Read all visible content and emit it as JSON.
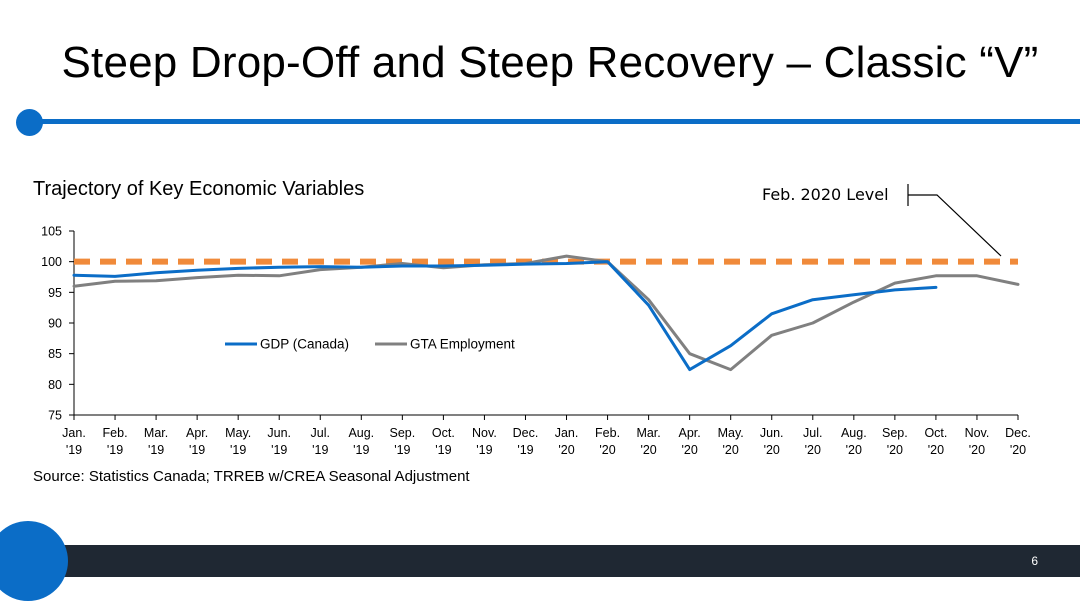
{
  "slide": {
    "title": "Steep Drop-Off and Steep Recovery – Classic “V”",
    "page_number": "6",
    "accent_color": "#0b6dc7",
    "footer_color": "#1f2833"
  },
  "chart_data": {
    "type": "line",
    "title": "Trajectory of Key Economic Variables",
    "source": "Source: Statistics Canada; TRREB w/CREA Seasonal Adjustment",
    "xlabel": "",
    "ylabel": "",
    "categories": [
      [
        "Jan.",
        "'19"
      ],
      [
        "Feb.",
        "'19"
      ],
      [
        "Mar.",
        "'19"
      ],
      [
        "Apr.",
        "'19"
      ],
      [
        "May.",
        "'19"
      ],
      [
        "Jun.",
        "'19"
      ],
      [
        "Jul.",
        "'19"
      ],
      [
        "Aug.",
        "'19"
      ],
      [
        "Sep.",
        "'19"
      ],
      [
        "Oct.",
        "'19"
      ],
      [
        "Nov.",
        "'19"
      ],
      [
        "Dec.",
        "'19"
      ],
      [
        "Jan.",
        "'20"
      ],
      [
        "Feb.",
        "'20"
      ],
      [
        "Mar.",
        "'20"
      ],
      [
        "Apr.",
        "'20"
      ],
      [
        "May.",
        "'20"
      ],
      [
        "Jun.",
        "'20"
      ],
      [
        "Jul.",
        "'20"
      ],
      [
        "Aug.",
        "'20"
      ],
      [
        "Sep.",
        "'20"
      ],
      [
        "Oct.",
        "'20"
      ],
      [
        "Nov.",
        "'20"
      ],
      [
        "Dec.",
        "'20"
      ]
    ],
    "ylim": [
      75,
      105
    ],
    "yticks": [
      75,
      80,
      85,
      90,
      95,
      100,
      105
    ],
    "grid": false,
    "legend_position": "middle-left",
    "series": [
      {
        "name": "GDP (Canada)",
        "color": "#0b6dc7",
        "values": [
          97.8,
          97.6,
          98.2,
          98.6,
          98.9,
          99.1,
          99.2,
          99.1,
          99.3,
          99.3,
          99.4,
          99.6,
          99.7,
          100.0,
          92.9,
          82.4,
          86.3,
          91.5,
          93.8,
          94.6,
          95.4,
          95.8,
          null,
          null
        ]
      },
      {
        "name": "GTA Employment",
        "color": "#808080",
        "values": [
          96.0,
          96.8,
          96.9,
          97.4,
          97.8,
          97.7,
          98.7,
          99.1,
          99.7,
          99.0,
          99.5,
          99.7,
          100.9,
          100.0,
          93.8,
          85.0,
          82.4,
          88.0,
          90.0,
          93.4,
          96.5,
          97.7,
          97.7,
          96.3
        ]
      }
    ],
    "reference_line": {
      "label": "Feb. 2020 Level",
      "value": 100,
      "color": "#f08a3a"
    }
  }
}
